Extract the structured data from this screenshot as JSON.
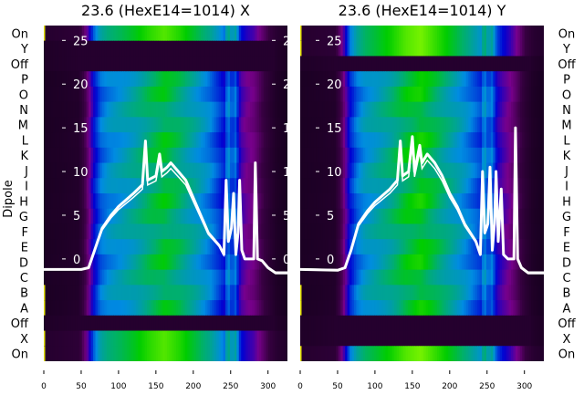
{
  "ylabel": "Dipole",
  "colors": {
    "line": "#ffffff",
    "edge": "#e0e000",
    "inner_tick_text": "#ffffff"
  },
  "chart_data": [
    {
      "type": "heatmap",
      "title": "23.6 (HexE14=1014) X",
      "row_labels": [
        "On",
        "Y",
        "Off",
        "P",
        "O",
        "N",
        "M",
        "L",
        "K",
        "J",
        "I",
        "H",
        "G",
        "F",
        "E",
        "D",
        "C",
        "B",
        "A",
        "Off",
        "X",
        "On"
      ],
      "row_band": [
        "bright",
        "dark",
        "dark",
        "main",
        "main",
        "main",
        "main",
        "main",
        "main",
        "main",
        "main",
        "main",
        "main",
        "main",
        "main",
        "main",
        "main",
        "main",
        "main",
        "dark",
        "bright",
        "bright"
      ],
      "xlim": [
        0,
        326
      ],
      "xticks": [
        0,
        50,
        100,
        150,
        200,
        250,
        300
      ],
      "inner_ylim": [
        -11.7,
        26.7
      ],
      "inner_yticks": [
        0,
        5,
        10,
        15,
        20,
        25
      ],
      "intensity_x": [
        0,
        20,
        45,
        55,
        65,
        75,
        85,
        100,
        120,
        140,
        160,
        180,
        200,
        220,
        240,
        245,
        250,
        255,
        262,
        270,
        280,
        290,
        300,
        310,
        326
      ],
      "intensity": [
        0.03,
        0.04,
        0.06,
        0.2,
        0.42,
        0.55,
        0.6,
        0.63,
        0.68,
        0.75,
        0.8,
        0.74,
        0.66,
        0.58,
        0.45,
        0.6,
        0.5,
        0.55,
        0.35,
        0.3,
        0.26,
        0.18,
        0.1,
        0.04,
        0.01
      ],
      "series": [
        {
          "name": "profile",
          "points": [
            [
              0,
              -1.2
            ],
            [
              50,
              -1.2
            ],
            [
              60,
              -1
            ],
            [
              68,
              1
            ],
            [
              78,
              3.5
            ],
            [
              90,
              5
            ],
            [
              100,
              6
            ],
            [
              120,
              7.5
            ],
            [
              132,
              8.5
            ],
            [
              136,
              13.5
            ],
            [
              139,
              9
            ],
            [
              150,
              9.5
            ],
            [
              155,
              12
            ],
            [
              158,
              10
            ],
            [
              165,
              10.5
            ],
            [
              170,
              11
            ],
            [
              180,
              10
            ],
            [
              190,
              9
            ],
            [
              200,
              7
            ],
            [
              210,
              5
            ],
            [
              220,
              3
            ],
            [
              235,
              1.5
            ],
            [
              241,
              0.5
            ],
            [
              244,
              9
            ],
            [
              247,
              2
            ],
            [
              251,
              3.5
            ],
            [
              254,
              7.5
            ],
            [
              257,
              0.5
            ],
            [
              260,
              3
            ],
            [
              262,
              9
            ],
            [
              265,
              1
            ],
            [
              269,
              0
            ],
            [
              281,
              0
            ],
            [
              283,
              11
            ],
            [
              286,
              0
            ],
            [
              292,
              -0.2
            ],
            [
              300,
              -1
            ],
            [
              310,
              -1.6
            ],
            [
              326,
              -1.6
            ]
          ]
        }
      ]
    },
    {
      "type": "heatmap",
      "title": "23.6 (HexE14=1014) Y",
      "row_labels": [
        "On",
        "Y",
        "Off",
        "P",
        "O",
        "N",
        "M",
        "L",
        "K",
        "J",
        "I",
        "H",
        "G",
        "F",
        "E",
        "D",
        "C",
        "B",
        "A",
        "Off",
        "X",
        "On"
      ],
      "row_band": [
        "bright",
        "bright",
        "dark",
        "main",
        "main",
        "main",
        "main",
        "main",
        "main",
        "main",
        "main",
        "main",
        "main",
        "main",
        "main",
        "main",
        "main",
        "main",
        "main",
        "dark",
        "dark",
        "bright"
      ],
      "xlim": [
        0,
        326
      ],
      "xticks": [
        0,
        50,
        100,
        150,
        200,
        250,
        300
      ],
      "inner_ylim": [
        -11.7,
        26.7
      ],
      "inner_yticks": [
        0,
        5,
        10,
        15,
        20,
        25
      ],
      "intensity_x": [
        0,
        20,
        45,
        55,
        65,
        75,
        85,
        100,
        120,
        140,
        160,
        180,
        200,
        220,
        240,
        245,
        250,
        255,
        262,
        270,
        280,
        290,
        300,
        310,
        326
      ],
      "intensity": [
        0.03,
        0.04,
        0.06,
        0.22,
        0.45,
        0.56,
        0.62,
        0.66,
        0.72,
        0.8,
        0.84,
        0.76,
        0.68,
        0.6,
        0.5,
        0.62,
        0.52,
        0.56,
        0.4,
        0.34,
        0.28,
        0.2,
        0.1,
        0.04,
        0.01
      ],
      "series": [
        {
          "name": "profile",
          "points": [
            [
              0,
              -1.2
            ],
            [
              50,
              -1.3
            ],
            [
              60,
              -1
            ],
            [
              68,
              1
            ],
            [
              78,
              4
            ],
            [
              90,
              5.5
            ],
            [
              100,
              6.5
            ],
            [
              120,
              8
            ],
            [
              130,
              9
            ],
            [
              134,
              13.5
            ],
            [
              137,
              9.5
            ],
            [
              145,
              10
            ],
            [
              150,
              14
            ],
            [
              153,
              10
            ],
            [
              160,
              13
            ],
            [
              163,
              11
            ],
            [
              170,
              12
            ],
            [
              180,
              11
            ],
            [
              190,
              9.5
            ],
            [
              200,
              7.5
            ],
            [
              210,
              6
            ],
            [
              220,
              4
            ],
            [
              235,
              2
            ],
            [
              241,
              0.5
            ],
            [
              244,
              10
            ],
            [
              247,
              3
            ],
            [
              251,
              4
            ],
            [
              254,
              10.5
            ],
            [
              257,
              1
            ],
            [
              260,
              4
            ],
            [
              262,
              10
            ],
            [
              265,
              2
            ],
            [
              269,
              8
            ],
            [
              272,
              0.5
            ],
            [
              278,
              0
            ],
            [
              286,
              0
            ],
            [
              288,
              15
            ],
            [
              291,
              0
            ],
            [
              296,
              -1
            ],
            [
              305,
              -1.6
            ],
            [
              326,
              -1.6
            ]
          ]
        }
      ]
    }
  ]
}
